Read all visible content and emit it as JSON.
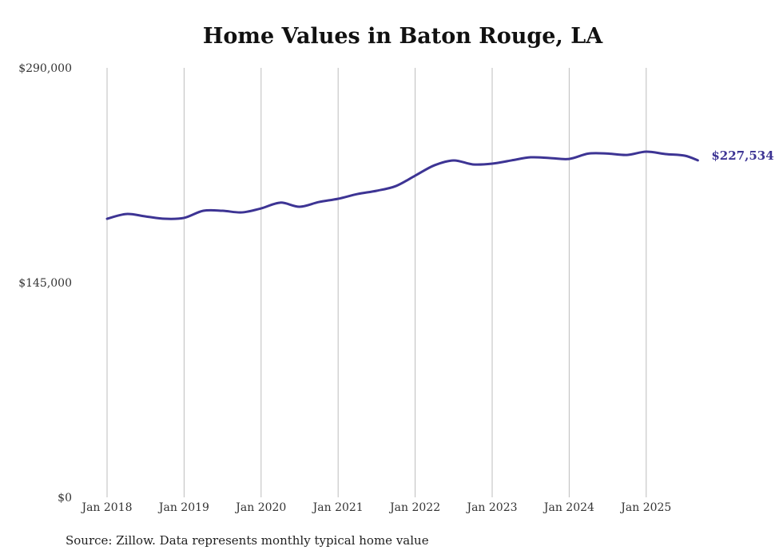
{
  "chart_data": {
    "type": "line",
    "title": "Home Values in Baton Rouge, LA",
    "source": "Source: Zillow. Data represents monthly typical home value",
    "xlabel": "",
    "ylabel": "",
    "ylim": [
      0,
      290000
    ],
    "y_ticks": [
      {
        "value": 0,
        "label": "$0"
      },
      {
        "value": 145000,
        "label": "$145,000"
      },
      {
        "value": 290000,
        "label": "$290,000"
      }
    ],
    "x_ticks": [
      {
        "value": 2018,
        "label": "Jan 2018"
      },
      {
        "value": 2019,
        "label": "Jan 2019"
      },
      {
        "value": 2020,
        "label": "Jan 2020"
      },
      {
        "value": 2021,
        "label": "Jan 2021"
      },
      {
        "value": 2022,
        "label": "Jan 2022"
      },
      {
        "value": 2023,
        "label": "Jan 2023"
      },
      {
        "value": 2024,
        "label": "Jan 2024"
      },
      {
        "value": 2025,
        "label": "Jan 2025"
      }
    ],
    "grid": "vertical",
    "legend": "none",
    "series": [
      {
        "name": "Typical home value",
        "color": "#3d3494",
        "end_label": "$227,534",
        "x": [
          2018.0,
          2018.25,
          2018.5,
          2018.75,
          2019.0,
          2019.25,
          2019.5,
          2019.75,
          2020.0,
          2020.25,
          2020.5,
          2020.75,
          2021.0,
          2021.25,
          2021.5,
          2021.75,
          2022.0,
          2022.25,
          2022.5,
          2022.75,
          2023.0,
          2023.25,
          2023.5,
          2023.75,
          2024.0,
          2024.25,
          2024.5,
          2024.75,
          2025.0,
          2025.25,
          2025.5,
          2025.67
        ],
        "values": [
          188100,
          191300,
          189700,
          188100,
          188700,
          193500,
          193500,
          192400,
          195100,
          199000,
          196200,
          199400,
          201600,
          204800,
          207000,
          210200,
          217200,
          224200,
          227500,
          224800,
          225300,
          227500,
          229600,
          229100,
          228500,
          232100,
          232100,
          231200,
          233400,
          231800,
          230700,
          227534
        ]
      }
    ]
  }
}
